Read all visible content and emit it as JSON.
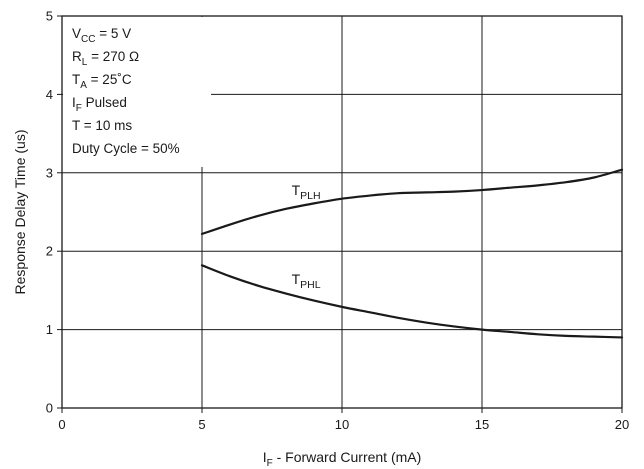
{
  "chart_data": {
    "type": "line",
    "xlabel": {
      "main": "I",
      "sub": "F",
      "rest": " - Forward Current (mA)"
    },
    "ylabel": "Response Delay Time (us)",
    "xlim": [
      0,
      20
    ],
    "ylim": [
      0,
      5
    ],
    "xticks": [
      0,
      5,
      10,
      15,
      20
    ],
    "yticks": [
      0,
      1,
      2,
      3,
      4,
      5
    ],
    "grid": true,
    "conditions": [
      {
        "main": "V",
        "sub": "CC",
        "rest": " = 5 V"
      },
      {
        "main": "R",
        "sub": "L",
        "rest": " = 270 Ω"
      },
      {
        "main": "T",
        "sub": "A",
        "rest": " = 25˚C"
      },
      {
        "main": "I",
        "sub": "F",
        "rest": " Pulsed"
      },
      {
        "main": "T = 10 ms",
        "sub": "",
        "rest": ""
      },
      {
        "main": "Duty Cycle = 50%",
        "sub": "",
        "rest": ""
      }
    ],
    "series": [
      {
        "name": {
          "main": "T",
          "sub": "PLH"
        },
        "color": "#1a1a1a",
        "x": [
          5,
          6,
          7,
          8,
          9,
          10,
          11,
          12,
          13,
          14,
          15,
          16,
          17,
          18,
          19,
          20
        ],
        "y": [
          2.22,
          2.34,
          2.45,
          2.54,
          2.61,
          2.67,
          2.71,
          2.74,
          2.75,
          2.76,
          2.78,
          2.81,
          2.84,
          2.88,
          2.94,
          3.04
        ]
      },
      {
        "name": {
          "main": "T",
          "sub": "PHL"
        },
        "color": "#1a1a1a",
        "x": [
          5,
          6,
          7,
          8,
          9,
          10,
          11,
          12,
          13,
          14,
          15,
          16,
          17,
          18,
          19,
          20
        ],
        "y": [
          1.82,
          1.68,
          1.56,
          1.46,
          1.37,
          1.29,
          1.22,
          1.15,
          1.09,
          1.04,
          1.0,
          0.97,
          0.94,
          0.92,
          0.91,
          0.9
        ]
      }
    ]
  }
}
